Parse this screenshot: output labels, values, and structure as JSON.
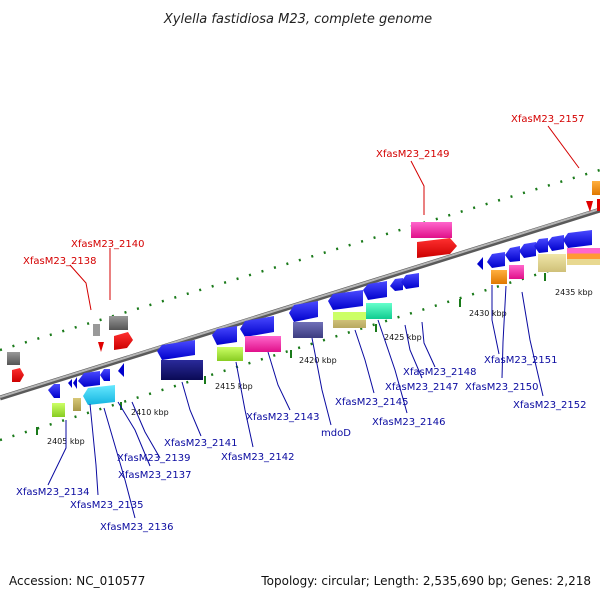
{
  "title": "Xylella fastidiosa M23, complete genome",
  "footer": {
    "accession": "Accession: NC_010577",
    "summary": "Topology: circular; Length: 2,535,690 bp; Genes: 2,218"
  },
  "ticks": [
    "2405 kbp",
    "2410 kbp",
    "2415 kbp",
    "2420 kbp",
    "2425 kbp",
    "2430 kbp",
    "2435 kbp"
  ],
  "upper_labels": [
    "XfasM23_2138",
    "XfasM23_2140",
    "XfasM23_2149",
    "XfasM23_2157"
  ],
  "lower_labels": [
    "XfasM23_2134",
    "XfasM23_2135",
    "XfasM23_2136",
    "XfasM23_2137",
    "XfasM23_2139",
    "XfasM23_2141",
    "XfasM23_2142",
    "XfasM23_2143",
    "mdoD",
    "XfasM23_2145",
    "XfasM23_2146",
    "XfasM23_2147",
    "XfasM23_2148",
    "XfasM23_2151",
    "XfasM23_2150",
    "XfasM23_2152"
  ],
  "colors": {
    "label_upper": "#d40000",
    "label_lower": "#0a0aa0",
    "backbone": "#8a8a8a",
    "tick": "#1a7a1a"
  }
}
